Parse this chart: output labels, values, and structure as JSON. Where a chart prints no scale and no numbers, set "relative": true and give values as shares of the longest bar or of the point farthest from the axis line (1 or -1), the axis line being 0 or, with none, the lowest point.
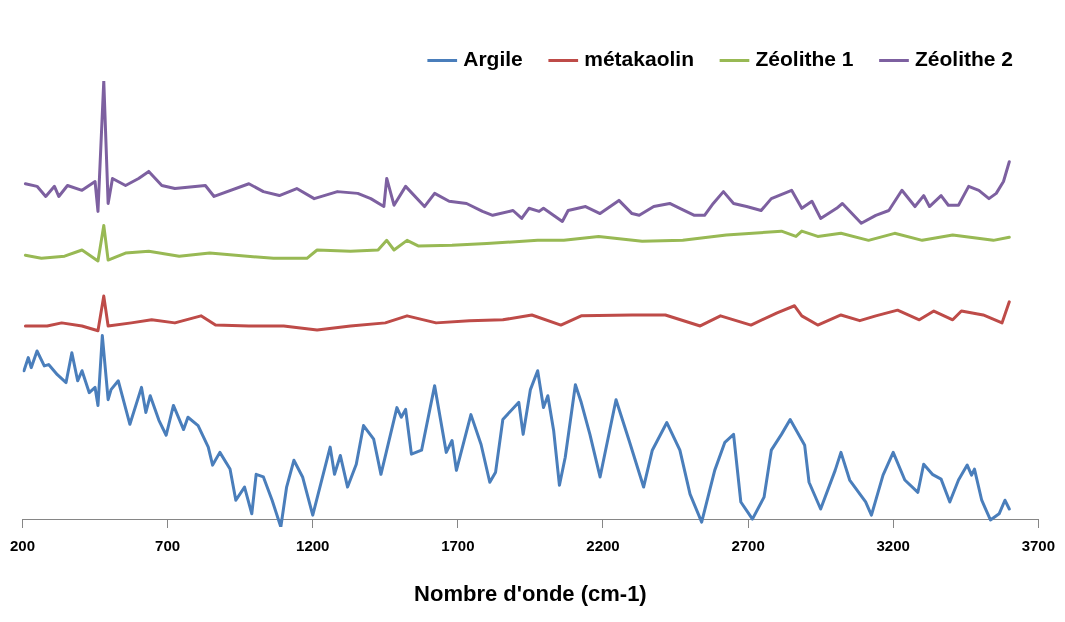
{
  "chart_data": {
    "type": "line",
    "relative": true,
    "xlabel": "Nombre d'onde (cm-1)",
    "xlim": [
      200,
      3700
    ],
    "xticks": [
      200,
      700,
      1200,
      1700,
      2200,
      2700,
      3200,
      3700
    ],
    "grid": false,
    "legend": "top right",
    "marker": "none",
    "line_style": "solid",
    "series": [
      {
        "name": "Argile",
        "color": "#4a7ebb",
        "x": [
          205,
          220,
          230,
          250,
          275,
          290,
          320,
          350,
          370,
          390,
          405,
          430,
          450,
          460,
          475,
          495,
          505,
          530,
          570,
          610,
          625,
          640,
          670,
          695,
          720,
          755,
          770,
          805,
          840,
          855,
          880,
          915,
          935,
          965,
          990,
          1005,
          1030,
          1060,
          1090,
          1110,
          1135,
          1165,
          1200,
          1260,
          1275,
          1295,
          1320,
          1350,
          1375,
          1410,
          1435,
          1455,
          1490,
          1505,
          1520,
          1540,
          1575,
          1620,
          1660,
          1680,
          1695,
          1745,
          1780,
          1810,
          1830,
          1855,
          1910,
          1925,
          1950,
          1975,
          1995,
          2010,
          2030,
          2050,
          2070,
          2105,
          2125,
          2155,
          2190,
          2245,
          2290,
          2340,
          2370,
          2420,
          2465,
          2500,
          2540,
          2585,
          2620,
          2650,
          2675,
          2715,
          2755,
          2780,
          2815,
          2845,
          2895,
          2910,
          2950,
          3000,
          3020,
          3050,
          3105,
          3125,
          3165,
          3200,
          3240,
          3285,
          3305,
          3335,
          3365,
          3395,
          3425,
          3455,
          3470,
          3480,
          3505,
          3535,
          3565,
          3585,
          3600
        ],
        "values": [
          0.34,
          0.37,
          0.347,
          0.385,
          0.351,
          0.354,
          0.331,
          0.313,
          0.381,
          0.317,
          0.34,
          0.29,
          0.302,
          0.261,
          0.42,
          0.274,
          0.297,
          0.317,
          0.218,
          0.302,
          0.245,
          0.283,
          0.227,
          0.193,
          0.261,
          0.206,
          0.234,
          0.215,
          0.166,
          0.125,
          0.154,
          0.116,
          0.045,
          0.075,
          0.014,
          0.104,
          0.098,
          0.045,
          -0.016,
          0.075,
          0.136,
          0.098,
          0.011,
          0.166,
          0.104,
          0.147,
          0.075,
          0.127,
          0.215,
          0.184,
          0.104,
          0.159,
          0.256,
          0.234,
          0.252,
          0.15,
          0.159,
          0.306,
          0.154,
          0.181,
          0.113,
          0.24,
          0.172,
          0.086,
          0.109,
          0.229,
          0.268,
          0.195,
          0.297,
          0.34,
          0.256,
          0.283,
          0.204,
          0.079,
          0.143,
          0.308,
          0.268,
          0.195,
          0.098,
          0.274,
          0.181,
          0.075,
          0.159,
          0.222,
          0.159,
          0.059,
          -0.005,
          0.113,
          0.177,
          0.195,
          0.041,
          0.002,
          0.052,
          0.159,
          0.195,
          0.229,
          0.17,
          0.086,
          0.025,
          0.113,
          0.154,
          0.091,
          0.041,
          0.011,
          0.102,
          0.154,
          0.091,
          0.063,
          0.127,
          0.104,
          0.093,
          0.041,
          0.091,
          0.125,
          0.102,
          0.116,
          0.045,
          0,
          0.014,
          0.045,
          0.025
        ]
      },
      {
        "name": "métakaolin",
        "color": "#be4b48",
        "x": [
          210,
          285,
          335,
          405,
          460,
          480,
          495,
          575,
          645,
          725,
          815,
          865,
          980,
          1100,
          1215,
          1330,
          1450,
          1525,
          1625,
          1740,
          1855,
          1955,
          2055,
          2125,
          2300,
          2415,
          2535,
          2605,
          2710,
          2800,
          2860,
          2885,
          2940,
          3020,
          3085,
          3140,
          3215,
          3290,
          3340,
          3405,
          3435,
          3510,
          3575,
          3600
        ],
        "values": [
          0.442,
          0.442,
          0.449,
          0.442,
          0.431,
          0.51,
          0.442,
          0.449,
          0.456,
          0.449,
          0.465,
          0.444,
          0.442,
          0.442,
          0.433,
          0.442,
          0.449,
          0.465,
          0.449,
          0.454,
          0.456,
          0.467,
          0.444,
          0.465,
          0.467,
          0.467,
          0.442,
          0.465,
          0.444,
          0.472,
          0.488,
          0.465,
          0.444,
          0.467,
          0.454,
          0.465,
          0.478,
          0.456,
          0.476,
          0.456,
          0.476,
          0.467,
          0.449,
          0.497
        ]
      },
      {
        "name": "Zéolithe 1",
        "color": "#98b954",
        "x": [
          210,
          265,
          345,
          405,
          460,
          480,
          495,
          555,
          635,
          740,
          845,
          1065,
          1180,
          1215,
          1330,
          1425,
          1455,
          1480,
          1525,
          1565,
          1680,
          1800,
          1975,
          2065,
          2185,
          2335,
          2475,
          2625,
          2815,
          2865,
          2885,
          2940,
          3020,
          3115,
          3205,
          3300,
          3405,
          3545,
          3600
        ],
        "values": [
          0.603,
          0.596,
          0.601,
          0.615,
          0.59,
          0.671,
          0.592,
          0.608,
          0.612,
          0.601,
          0.608,
          0.596,
          0.596,
          0.615,
          0.612,
          0.615,
          0.637,
          0.615,
          0.637,
          0.624,
          0.626,
          0.63,
          0.637,
          0.637,
          0.646,
          0.635,
          0.637,
          0.649,
          0.658,
          0.646,
          0.658,
          0.646,
          0.653,
          0.637,
          0.653,
          0.637,
          0.649,
          0.637,
          0.644
        ]
      },
      {
        "name": "Zéolithe 2",
        "color": "#7d60a0",
        "x": [
          210,
          250,
          280,
          310,
          325,
          355,
          405,
          450,
          460,
          480,
          495,
          510,
          555,
          600,
          635,
          680,
          725,
          830,
          860,
          980,
          1030,
          1085,
          1145,
          1205,
          1285,
          1355,
          1400,
          1445,
          1455,
          1480,
          1520,
          1585,
          1620,
          1670,
          1730,
          1785,
          1820,
          1890,
          1920,
          1945,
          1980,
          1995,
          2060,
          2080,
          2140,
          2190,
          2255,
          2300,
          2325,
          2375,
          2430,
          2465,
          2515,
          2550,
          2580,
          2615,
          2650,
          2695,
          2745,
          2780,
          2850,
          2885,
          2920,
          2950,
          3005,
          3025,
          3090,
          3140,
          3185,
          3230,
          3275,
          3305,
          3325,
          3365,
          3390,
          3425,
          3460,
          3495,
          3530,
          3555,
          3580,
          3600
        ],
        "values": [
          0.766,
          0.76,
          0.737,
          0.76,
          0.737,
          0.762,
          0.751,
          0.771,
          0.703,
          1,
          0.721,
          0.778,
          0.762,
          0.778,
          0.794,
          0.762,
          0.755,
          0.762,
          0.737,
          0.766,
          0.748,
          0.739,
          0.755,
          0.732,
          0.748,
          0.744,
          0.732,
          0.714,
          0.778,
          0.717,
          0.76,
          0.714,
          0.744,
          0.726,
          0.721,
          0.703,
          0.694,
          0.705,
          0.687,
          0.71,
          0.703,
          0.71,
          0.68,
          0.705,
          0.714,
          0.698,
          0.728,
          0.698,
          0.694,
          0.714,
          0.721,
          0.71,
          0.694,
          0.694,
          0.721,
          0.748,
          0.721,
          0.714,
          0.705,
          0.732,
          0.751,
          0.71,
          0.726,
          0.687,
          0.71,
          0.721,
          0.676,
          0.694,
          0.705,
          0.751,
          0.714,
          0.739,
          0.714,
          0.739,
          0.717,
          0.717,
          0.76,
          0.751,
          0.732,
          0.744,
          0.771,
          0.816
        ]
      }
    ]
  }
}
